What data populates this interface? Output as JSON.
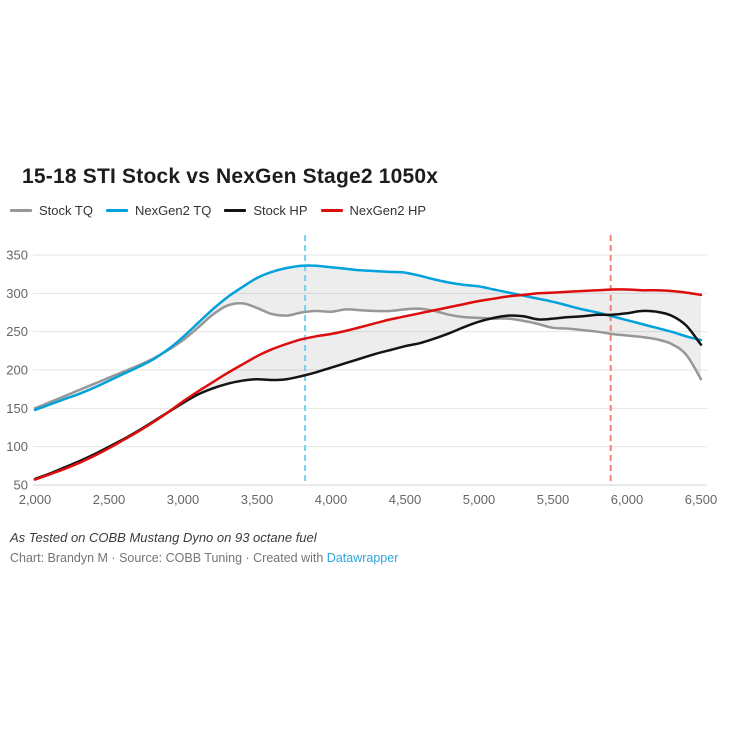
{
  "footer": {
    "note": "As Tested on COBB Mustang Dyno on 93 octane fuel",
    "byline": "Chart: Brandyn M · Source: COBB Tuning · Created with ",
    "link": "Datawrapper",
    "link_color": "#2ea7de"
  },
  "chart_data": {
    "type": "line",
    "title": "15-18 STI Stock vs NexGen Stage2 1050x",
    "x_unit": "RPM",
    "xlim": [
      2000,
      6500
    ],
    "ylim": [
      50,
      350
    ],
    "grid": true,
    "legend_position": "top-left",
    "x": [
      2000,
      2100,
      2200,
      2300,
      2400,
      2500,
      2600,
      2700,
      2800,
      2900,
      3000,
      3100,
      3200,
      3300,
      3400,
      3500,
      3600,
      3700,
      3800,
      3900,
      4000,
      4100,
      4200,
      4300,
      4400,
      4500,
      4600,
      4700,
      4800,
      4900,
      5000,
      5100,
      5200,
      5300,
      5400,
      5500,
      5600,
      5700,
      5800,
      5900,
      6000,
      6100,
      6200,
      6300,
      6400,
      6500
    ],
    "xticks": [
      {
        "v": 2000,
        "label": "2,000"
      },
      {
        "v": 2500,
        "label": "2,500"
      },
      {
        "v": 3000,
        "label": "3,000"
      },
      {
        "v": 3500,
        "label": "3,500"
      },
      {
        "v": 4000,
        "label": "4,000"
      },
      {
        "v": 4500,
        "label": "4,500"
      },
      {
        "v": 5000,
        "label": "5,000"
      },
      {
        "v": 5500,
        "label": "5,500"
      },
      {
        "v": 6000,
        "label": "6,000"
      },
      {
        "v": 6500,
        "label": "6,500"
      }
    ],
    "yticks": [
      50,
      100,
      150,
      200,
      250,
      300,
      350
    ],
    "series": [
      {
        "name": "Stock TQ",
        "color": "#979797",
        "values": [
          150,
          158,
          166,
          174,
          182,
          190,
          198,
          206,
          215,
          226,
          239,
          255,
          272,
          284,
          287,
          281,
          273,
          271,
          275,
          277,
          276,
          279,
          278,
          277,
          277,
          279,
          280,
          277,
          272,
          269,
          268,
          267,
          267,
          264,
          260,
          255,
          254,
          252,
          250,
          247,
          245,
          243,
          240,
          234,
          220,
          188
        ]
      },
      {
        "name": "NexGen2 TQ",
        "color": "#00a2dc",
        "values": [
          148,
          155,
          162,
          169,
          177,
          186,
          195,
          204,
          214,
          227,
          243,
          261,
          279,
          295,
          308,
          320,
          328,
          333,
          336,
          336,
          334,
          332,
          330,
          329,
          328,
          327,
          323,
          318,
          314,
          311,
          309,
          305,
          301,
          297,
          293,
          289,
          284,
          279,
          275,
          270,
          265,
          260,
          255,
          250,
          244,
          239
        ]
      },
      {
        "name": "Stock HP",
        "color": "#141414",
        "values": [
          58,
          65,
          73,
          81,
          90,
          100,
          110,
          121,
          133,
          145,
          157,
          168,
          176,
          182,
          186,
          188,
          187,
          188,
          192,
          197,
          203,
          209,
          215,
          221,
          226,
          231,
          235,
          241,
          248,
          256,
          263,
          268,
          271,
          270,
          266,
          267,
          269,
          270,
          272,
          272,
          274,
          277,
          276,
          271,
          258,
          233
        ]
      },
      {
        "name": "NexGen2 HP",
        "color": "#dc0d0d",
        "values": [
          57,
          64,
          71,
          79,
          88,
          98,
          109,
          120,
          132,
          145,
          159,
          172,
          184,
          196,
          207,
          218,
          227,
          234,
          240,
          244,
          247,
          251,
          256,
          261,
          266,
          270,
          274,
          278,
          282,
          286,
          290,
          293,
          296,
          298,
          300,
          301,
          302,
          303,
          304,
          305,
          305,
          304,
          304,
          303,
          301,
          298
        ]
      }
    ],
    "bands": [
      {
        "upper": "NexGen2 TQ",
        "lower": "Stock TQ",
        "fill": "#ededed"
      },
      {
        "upper": "NexGen2 HP",
        "lower": "Stock HP",
        "fill": "#ededed"
      }
    ],
    "vlines": [
      {
        "x": 3825,
        "color": "#76cff2"
      },
      {
        "x": 5890,
        "color": "#f28079"
      }
    ]
  }
}
